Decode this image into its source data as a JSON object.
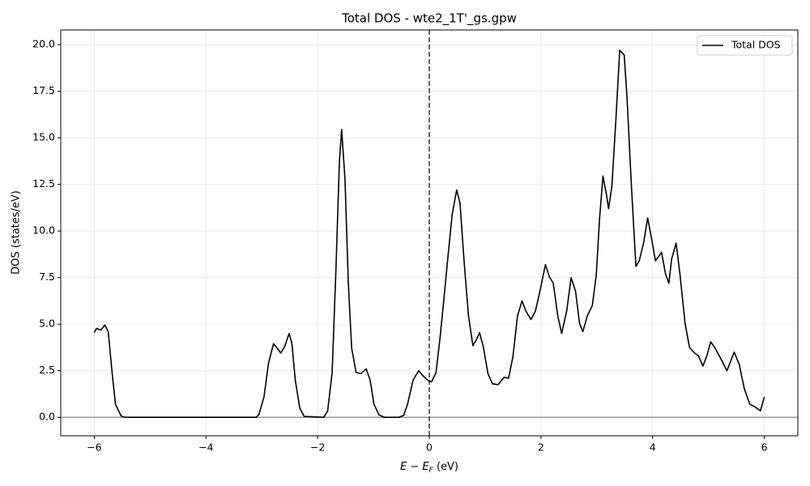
{
  "chart_data": {
    "type": "line",
    "title": "Total DOS - wte2_1T'_gs.gpw",
    "x_label": [
      "E",
      " − ",
      "E",
      "F",
      " (eV)"
    ],
    "y_label": "DOS (states/eV)",
    "xlim": [
      -6.6,
      6.6
    ],
    "ylim": [
      -0.99,
      20.79
    ],
    "xticks": [
      {
        "value": -6,
        "label": "−6"
      },
      {
        "value": -4,
        "label": "−4"
      },
      {
        "value": -2,
        "label": "−2"
      },
      0,
      2,
      4,
      6
    ],
    "yticks": [
      {
        "value": 0,
        "label": "0.0"
      },
      {
        "value": 2.5,
        "label": "2.5"
      },
      {
        "value": 5,
        "label": "5.0"
      },
      {
        "value": 7.5,
        "label": "7.5"
      },
      {
        "value": 10,
        "label": "10.0"
      },
      {
        "value": 12.5,
        "label": "12.5"
      },
      {
        "value": 15,
        "label": "15.0"
      },
      {
        "value": 17.5,
        "label": "17.5"
      },
      {
        "value": 20,
        "label": "20.0"
      }
    ],
    "grid": true,
    "legend": "upper right",
    "vline_x": 0,
    "hline_y": 0,
    "x": [
      -6,
      -5.96,
      -5.88,
      -5.81,
      -5.75,
      -5.68,
      -5.62,
      -5.52,
      -5.45,
      -4,
      -3.1,
      -3.05,
      -2.96,
      -2.88,
      -2.79,
      -2.72,
      -2.66,
      -2.59,
      -2.51,
      -2.46,
      -2.4,
      -2.32,
      -2.24,
      -1.89,
      -1.82,
      -1.74,
      -1.67,
      -1.61,
      -1.57,
      -1.51,
      -1.45,
      -1.39,
      -1.31,
      -1.22,
      -1.13,
      -1.06,
      -0.99,
      -0.9,
      -0.8,
      -0.55,
      -0.46,
      -0.39,
      -0.29,
      -0.19,
      -0.12,
      -0.03,
      0.04,
      0.12,
      0.19,
      0.26,
      0.33,
      0.41,
      0.49,
      0.55,
      0.62,
      0.7,
      0.78,
      0.84,
      0.9,
      0.97,
      1.05,
      1.13,
      1.23,
      1.34,
      1.42,
      1.5,
      1.58,
      1.66,
      1.73,
      1.82,
      1.9,
      1.98,
      2.08,
      2.15,
      2.22,
      2.3,
      2.37,
      2.46,
      2.54,
      2.62,
      2.69,
      2.75,
      2.83,
      2.92,
      2.99,
      3.05,
      3.11,
      3.17,
      3.21,
      3.27,
      3.34,
      3.41,
      3.49,
      3.54,
      3.62,
      3.7,
      3.76,
      3.84,
      3.91,
      3.98,
      4.05,
      4.16,
      4.23,
      4.29,
      4.34,
      4.42,
      4.49,
      4.58,
      4.66,
      4.75,
      4.82,
      4.9,
      4.97,
      5.04,
      5.11,
      5.22,
      5.33,
      5.46,
      5.55,
      5.64,
      5.74,
      5.84,
      5.93,
      6
    ],
    "series": [
      {
        "name": "Total DOS",
        "color": "#000000",
        "values": [
          4.55,
          4.77,
          4.69,
          4.95,
          4.6,
          2.4,
          0.7,
          0.08,
          0,
          0,
          0,
          0.15,
          1.1,
          2.9,
          3.95,
          3.7,
          3.45,
          3.8,
          4.5,
          3.95,
          2,
          0.5,
          0.05,
          0,
          0.35,
          2.4,
          8.1,
          13.7,
          15.45,
          12.8,
          7.2,
          3.7,
          2.4,
          2.35,
          2.6,
          2,
          0.7,
          0.13,
          0,
          0,
          0.1,
          0.7,
          2,
          2.5,
          2.25,
          2,
          1.9,
          2.4,
          4.2,
          6.3,
          8.5,
          10.9,
          12.2,
          11.5,
          8.5,
          5.5,
          3.85,
          4.15,
          4.55,
          3.75,
          2.35,
          1.8,
          1.75,
          2.15,
          2.1,
          3.3,
          5.45,
          6.25,
          5.7,
          5.25,
          5.7,
          6.75,
          8.2,
          7.55,
          7.2,
          5.45,
          4.5,
          5.7,
          7.5,
          6.75,
          5.05,
          4.6,
          5.45,
          6,
          7.65,
          10.7,
          12.95,
          12,
          11.2,
          12.4,
          15.9,
          19.7,
          19.45,
          17.2,
          12.4,
          8.1,
          8.4,
          9.4,
          10.7,
          9.6,
          8.4,
          8.85,
          7.7,
          7.2,
          8.5,
          9.35,
          7.65,
          5.05,
          3.75,
          3.45,
          3.3,
          2.75,
          3.3,
          4.05,
          3.75,
          3.15,
          2.5,
          3.5,
          2.85,
          1.55,
          0.7,
          0.55,
          0.35,
          1.1
        ]
      }
    ]
  }
}
